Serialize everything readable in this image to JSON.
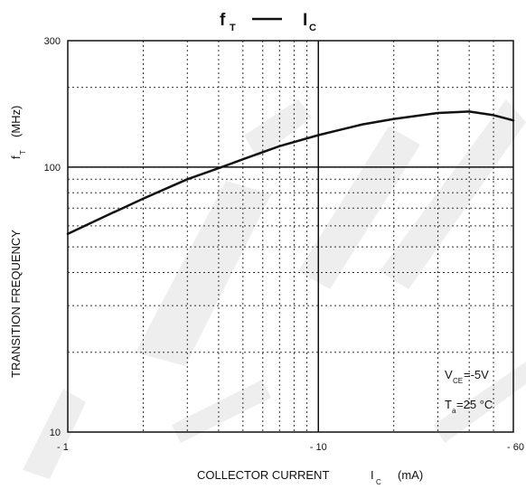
{
  "chart_data": {
    "type": "line",
    "title": {
      "symbol_left": "f",
      "sub_left": "T",
      "dash": "—",
      "symbol_right": "I",
      "sub_right": "C"
    },
    "xlabel": {
      "text": "COLLECTOR CURRENT",
      "symbol": "I",
      "sub": "C",
      "unit": "(mA)"
    },
    "ylabel": {
      "text": "TRANSITION FREQUENCY",
      "symbol": "f",
      "sub": "T",
      "unit": "(MHz)"
    },
    "x_scale": "log",
    "y_scale": "log",
    "xlim": [
      1,
      60
    ],
    "ylim": [
      10,
      300
    ],
    "x_ticks": [
      {
        "value": 1,
        "label": "- 1"
      },
      {
        "value": 10,
        "label": "- 10"
      },
      {
        "value": 60,
        "label": "- 60"
      }
    ],
    "y_ticks": [
      {
        "value": 10,
        "label": "10"
      },
      {
        "value": 100,
        "label": "100"
      },
      {
        "value": 300,
        "label": "300"
      }
    ],
    "grid": true,
    "annotations": [
      {
        "main": "V",
        "sub": "CE",
        "rest": "=-5V"
      },
      {
        "main": "T",
        "sub": "a",
        "rest": "=25 °C"
      }
    ],
    "series": [
      {
        "x": [
          1,
          1.5,
          2,
          3,
          4,
          5,
          7,
          10,
          15,
          20,
          30,
          40,
          50,
          60
        ],
        "y": [
          56,
          67,
          76,
          90,
          99,
          107,
          120,
          132,
          145,
          152,
          160,
          162,
          157,
          150
        ]
      }
    ]
  }
}
